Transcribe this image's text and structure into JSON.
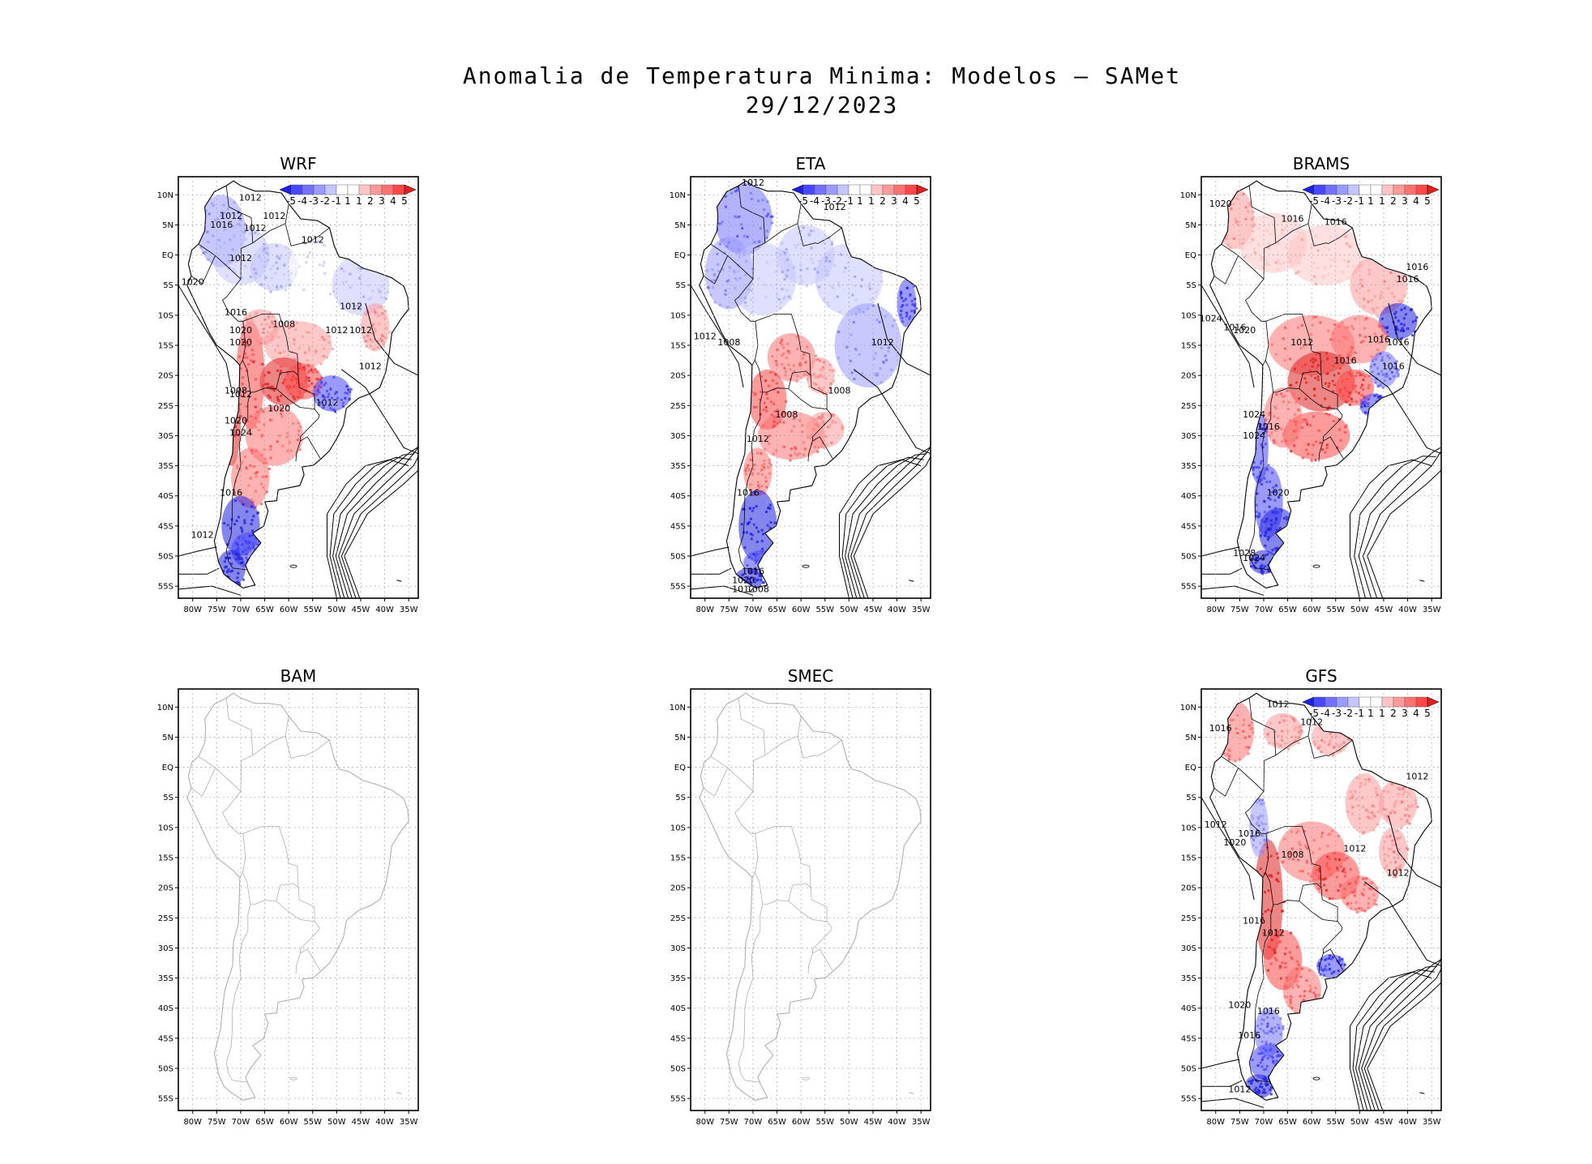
{
  "figure": {
    "title_line1": "Anomalia de Temperatura Minima: Modelos — SAMet",
    "title_line2": "29/12/2023"
  },
  "chart_data": {
    "type": "heatmap",
    "variable": "minimum temperature anomaly (°C) with sea-level pressure contours (hPa)",
    "y_ticks": [
      "10N",
      "5N",
      "EQ",
      "5S",
      "10S",
      "15S",
      "20S",
      "25S",
      "30S",
      "35S",
      "40S",
      "45S",
      "50S",
      "55S"
    ],
    "x_ticks": [
      "80W",
      "75W",
      "70W",
      "65W",
      "60W",
      "55W",
      "50W",
      "45W",
      "40W",
      "35W"
    ],
    "lon_range": [
      -83,
      -33
    ],
    "lat_range": [
      -57,
      13
    ],
    "colorbar": {
      "labels": [
        "-5",
        "-4",
        "-3",
        "-2",
        "-1",
        "1",
        "1",
        "2",
        "3",
        "4",
        "5"
      ],
      "colors": [
        "#2020e0",
        "#4848ff",
        "#7272ff",
        "#9a9aff",
        "#c4c4ff",
        "#ffffff",
        "#ffffff",
        "#ffc4c4",
        "#ff9a9a",
        "#ff7272",
        "#ff4848",
        "#e02020"
      ]
    },
    "panels": [
      {
        "name": "WRF",
        "has_data": true,
        "pressure_labels": [
          "1012",
          "1012",
          "1016",
          "1012",
          "1012",
          "1012",
          "1012",
          "1020",
          "1012",
          "1016",
          "1008",
          "1020",
          "1012",
          "1012",
          "1020",
          "1012",
          "1008",
          "1012",
          "1020",
          "1012",
          "1020",
          "1024",
          "1016",
          "1012"
        ]
      },
      {
        "name": "ETA",
        "has_data": true,
        "pressure_labels": [
          "1012",
          "1012",
          "1012",
          "1008",
          "1012",
          "1008",
          "1008",
          "1012",
          "1016",
          "1016",
          "1020",
          "1012",
          "1008"
        ]
      },
      {
        "name": "BRAMS",
        "has_data": true,
        "pressure_labels": [
          "1020",
          "1016",
          "1016",
          "1016",
          "1016",
          "1024",
          "1016",
          "1020",
          "1012",
          "1016",
          "1016",
          "1016",
          "1016",
          "1024",
          "1016",
          "1024",
          "1020",
          "1028",
          "1024"
        ]
      },
      {
        "name": "BAM",
        "has_data": false,
        "pressure_labels": []
      },
      {
        "name": "SMEC",
        "has_data": false,
        "pressure_labels": []
      },
      {
        "name": "GFS",
        "has_data": true,
        "pressure_labels": [
          "1016",
          "1012",
          "1012",
          "1012",
          "1012",
          "1016",
          "1020",
          "1008",
          "1012",
          "1012",
          "1016",
          "1012",
          "1020",
          "1016",
          "1016",
          "1012"
        ]
      }
    ]
  }
}
